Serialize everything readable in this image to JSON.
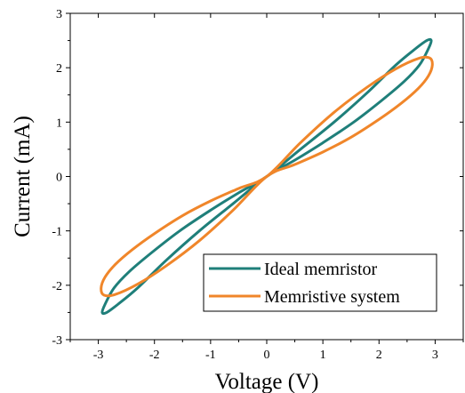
{
  "chart_data": {
    "type": "line",
    "xlabel": "Voltage (V)",
    "ylabel": "Current (mA)",
    "xlim": [
      -3.5,
      3.5
    ],
    "ylim": [
      -3,
      3
    ],
    "xticks": [
      -3,
      -2,
      -1,
      0,
      1,
      2,
      3
    ],
    "yticks": [
      -3,
      -2,
      -1,
      0,
      1,
      2,
      3
    ],
    "legend_position": "bottom-right",
    "grid": false,
    "series": [
      {
        "name": "Ideal memristor",
        "color": "#1f7f7a",
        "x": [
          0,
          0.6,
          1.2,
          1.8,
          2.3,
          2.65,
          2.85,
          2.93,
          2.88,
          2.72,
          2.45,
          2.05,
          1.55,
          1.0,
          0.5,
          0,
          -0.6,
          -1.2,
          -1.8,
          -2.3,
          -2.65,
          -2.85,
          -2.93,
          -2.88,
          -2.72,
          -2.45,
          -2.05,
          -1.55,
          -1.0,
          -0.5,
          0
        ],
        "y": [
          0,
          0.5,
          1.0,
          1.55,
          2.05,
          2.35,
          2.5,
          2.5,
          2.35,
          2.05,
          1.75,
          1.4,
          1.0,
          0.62,
          0.3,
          0,
          -0.5,
          -1.0,
          -1.55,
          -2.05,
          -2.35,
          -2.5,
          -2.5,
          -2.35,
          -2.05,
          -1.75,
          -1.4,
          -1.0,
          -0.62,
          -0.3,
          0
        ]
      },
      {
        "name": "Memristive system",
        "color": "#f0862a",
        "x": [
          0,
          0.6,
          1.2,
          1.8,
          2.3,
          2.7,
          2.9,
          2.95,
          2.88,
          2.7,
          2.4,
          2.0,
          1.5,
          1.0,
          0.5,
          0,
          -0.6,
          -1.2,
          -1.8,
          -2.3,
          -2.7,
          -2.9,
          -2.95,
          -2.88,
          -2.7,
          -2.4,
          -2.0,
          -1.5,
          -1.0,
          -0.5,
          0
        ],
        "y": [
          0,
          0.62,
          1.18,
          1.65,
          1.98,
          2.17,
          2.18,
          2.05,
          1.85,
          1.62,
          1.35,
          1.05,
          0.72,
          0.45,
          0.22,
          0,
          -0.62,
          -1.18,
          -1.65,
          -1.98,
          -2.17,
          -2.18,
          -2.05,
          -1.85,
          -1.62,
          -1.35,
          -1.05,
          -0.72,
          -0.45,
          -0.22,
          0
        ]
      }
    ]
  }
}
